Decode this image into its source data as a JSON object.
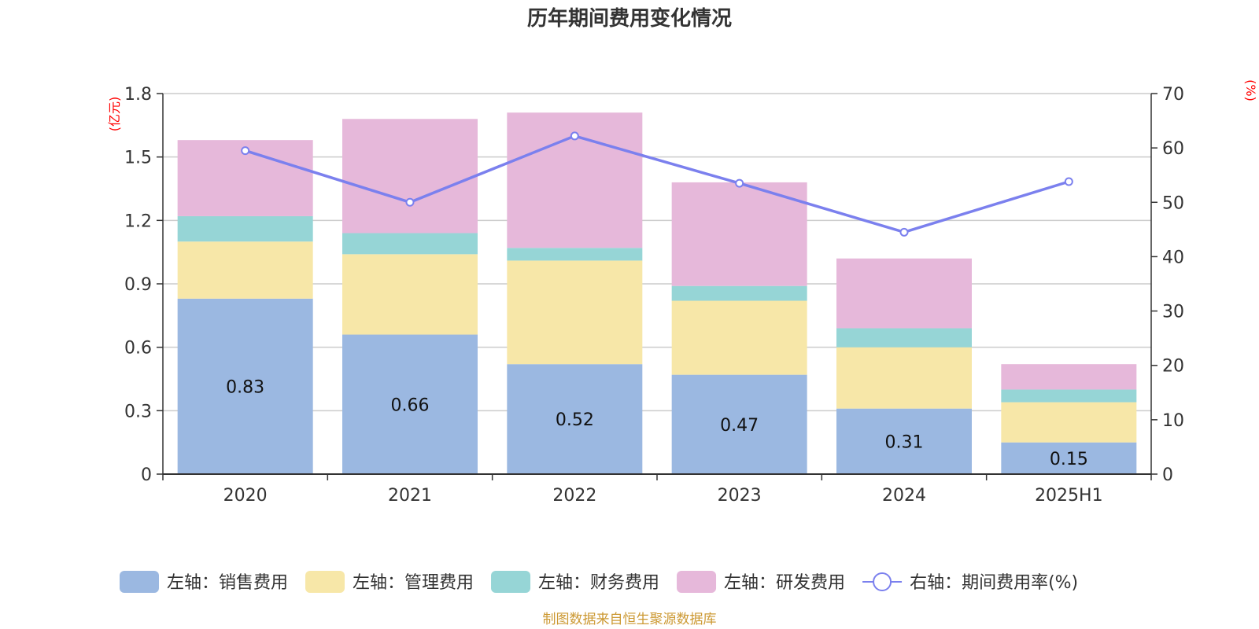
{
  "chart_data": {
    "type": "bar",
    "title": "历年期间费用变化情况",
    "categories": [
      "2020",
      "2021",
      "2022",
      "2023",
      "2024",
      "2025H1"
    ],
    "stacked": true,
    "left_axis": {
      "unit_label": "(亿元)",
      "ylim": [
        0,
        1.8
      ],
      "ticks": [
        "0",
        "0.3",
        "0.6",
        "0.9",
        "1.2",
        "1.5",
        "1.8"
      ]
    },
    "right_axis": {
      "unit_label": "(%)",
      "ylim": [
        0,
        70
      ],
      "ticks": [
        "0",
        "10",
        "20",
        "30",
        "40",
        "50",
        "60",
        "70"
      ]
    },
    "grid": true,
    "legend_position": "bottom",
    "series": [
      {
        "name": "左轴：销售费用",
        "axis": "left",
        "type": "bar",
        "color": "#9bb8e1",
        "values": [
          0.83,
          0.66,
          0.52,
          0.47,
          0.31,
          0.15
        ],
        "show_labels": true
      },
      {
        "name": "左轴：管理费用",
        "axis": "left",
        "type": "bar",
        "color": "#f7e7a8",
        "values": [
          0.27,
          0.38,
          0.49,
          0.35,
          0.29,
          0.19
        ],
        "show_labels": false
      },
      {
        "name": "左轴：财务费用",
        "axis": "left",
        "type": "bar",
        "color": "#96d5d6",
        "values": [
          0.12,
          0.1,
          0.06,
          0.07,
          0.09,
          0.06
        ],
        "show_labels": false
      },
      {
        "name": "左轴：研发费用",
        "axis": "left",
        "type": "bar",
        "color": "#e6b8da",
        "values": [
          0.36,
          0.54,
          0.64,
          0.49,
          0.33,
          0.12
        ],
        "show_labels": false
      },
      {
        "name": "右轴：期间费用率(%)",
        "axis": "right",
        "type": "line",
        "color": "#7b80ee",
        "values": [
          59.5,
          50.0,
          62.2,
          53.5,
          44.5,
          53.8
        ]
      }
    ],
    "source_note": "制图数据来自恒生聚源数据库"
  }
}
